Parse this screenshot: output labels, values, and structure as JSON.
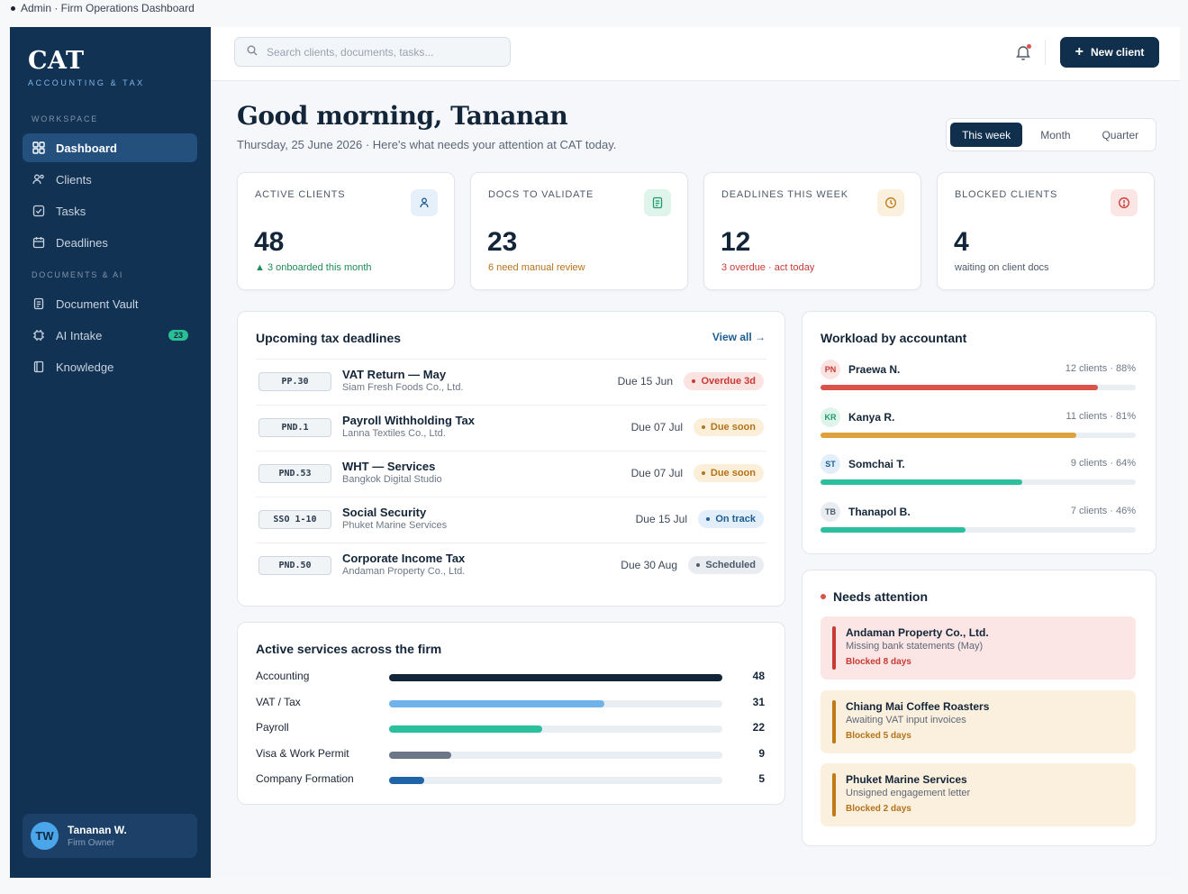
{
  "window_caption": "Admin · Firm Operations Dashboard",
  "brand": {
    "name": "CAT",
    "tagline": "ACCOUNTING & TAX"
  },
  "sidebar": {
    "sections": [
      {
        "label": "WORKSPACE"
      },
      {
        "label": "DOCUMENTS & AI"
      }
    ],
    "items": [
      {
        "label": "Dashboard",
        "icon": "grid-icon",
        "active": true
      },
      {
        "label": "Clients",
        "icon": "users-icon"
      },
      {
        "label": "Tasks",
        "icon": "checkbox-icon"
      },
      {
        "label": "Deadlines",
        "icon": "calendar-icon"
      },
      {
        "label": "Document Vault",
        "icon": "document-icon"
      },
      {
        "label": "AI Intake",
        "icon": "chip-icon",
        "badge": "23"
      },
      {
        "label": "Knowledge",
        "icon": "book-icon"
      }
    ],
    "user": {
      "initials": "TW",
      "name": "Tananan W.",
      "role": "Firm Owner"
    }
  },
  "topbar": {
    "search_placeholder": "Search clients, documents, tasks...",
    "new_client_label": "New client"
  },
  "header": {
    "greeting": "Good morning, Tananan",
    "subtitle": "Thursday, 25 June 2026 · Here's what needs your attention at CAT today.",
    "range_tabs": [
      "This week",
      "Month",
      "Quarter"
    ],
    "active_range": "This week"
  },
  "kpis": [
    {
      "label": "ACTIVE CLIENTS",
      "value": "48",
      "note": "3 onboarded this month",
      "note_color": "#1f8a5c",
      "icon": "user-icon",
      "icon_bg": "#e5f0fb",
      "icon_color": "#1d5d92"
    },
    {
      "label": "DOCS TO VALIDATE",
      "value": "23",
      "note": "6 need manual review",
      "note_color": "#b5731a",
      "icon": "document-icon",
      "icon_bg": "#dff5ec",
      "icon_color": "#1f9a6e"
    },
    {
      "label": "DEADLINES THIS WEEK",
      "value": "12",
      "note": "3 overdue · act today",
      "note_color": "#c83a33",
      "icon": "clock-icon",
      "icon_bg": "#fbf0dd",
      "icon_color": "#c07a18"
    },
    {
      "label": "BLOCKED CLIENTS",
      "value": "4",
      "note": "waiting on client docs",
      "note_color": "#4e5a69",
      "icon": "alert-icon",
      "icon_bg": "#fbe6e5",
      "icon_color": "#c83a33"
    }
  ],
  "deadlines": {
    "title": "Upcoming tax deadlines",
    "view_all": "View all →",
    "rows": [
      {
        "code": "PP.30",
        "name": "VAT Return — May",
        "client": "Siam Fresh Foods Co., Ltd.",
        "due": "Due 15 Jun",
        "status": "Overdue 3d",
        "status_bg": "#fbe3e2",
        "status_color": "#c83a33"
      },
      {
        "code": "PND.1",
        "name": "Payroll Withholding Tax",
        "client": "Lanna Textiles Co., Ltd.",
        "due": "Due 07 Jul",
        "status": "Due soon",
        "status_bg": "#fbefd9",
        "status_color": "#b5731a"
      },
      {
        "code": "PND.53",
        "name": "WHT — Services",
        "client": "Bangkok Digital Studio",
        "due": "Due 07 Jul",
        "status": "Due soon",
        "status_bg": "#fbefd9",
        "status_color": "#b5731a"
      },
      {
        "code": "SSO 1-10",
        "name": "Social Security",
        "client": "Phuket Marine Services",
        "due": "Due 15 Jul",
        "status": "On track",
        "status_bg": "#e2eefa",
        "status_color": "#1d5d92"
      },
      {
        "code": "PND.50",
        "name": "Corporate Income Tax",
        "client": "Andaman Property Co., Ltd.",
        "due": "Due 30 Aug",
        "status": "Scheduled",
        "status_bg": "#e9ecf0",
        "status_color": "#4e5a69"
      }
    ]
  },
  "services": {
    "title": "Active services across the firm",
    "max": 48,
    "rows": [
      {
        "label": "Accounting",
        "value": 48,
        "color": "#132538"
      },
      {
        "label": "VAT / Tax",
        "value": 31,
        "color": "#6fb3ea"
      },
      {
        "label": "Payroll",
        "value": 22,
        "color": "#2bbf9e"
      },
      {
        "label": "Visa & Work Permit",
        "value": 9,
        "color": "#6b7787"
      },
      {
        "label": "Company Formation",
        "value": 5,
        "color": "#1f64a6"
      }
    ]
  },
  "workload": {
    "title": "Workload by accountant",
    "rows": [
      {
        "initials": "PN",
        "name": "Praewa N.",
        "meta": "12 clients · 88%",
        "pct": 88,
        "color": "#d9534a",
        "badge_bg": "#fbe3e2",
        "badge_color": "#c83a33"
      },
      {
        "initials": "KR",
        "name": "Kanya R.",
        "meta": "11 clients · 81%",
        "pct": 81,
        "color": "#dda23c",
        "badge_bg": "#dff5ec",
        "badge_color": "#1f9a6e"
      },
      {
        "initials": "ST",
        "name": "Somchai T.",
        "meta": "9 clients · 64%",
        "pct": 64,
        "color": "#2bbf9e",
        "badge_bg": "#e2eefa",
        "badge_color": "#1d5d92"
      },
      {
        "initials": "TB",
        "name": "Thanapol B.",
        "meta": "7 clients · 46%",
        "pct": 46,
        "color": "#2bbf9e",
        "badge_bg": "#e9ecf0",
        "badge_color": "#4e5a69"
      }
    ]
  },
  "attention": {
    "title": "Needs attention",
    "items": [
      {
        "name": "Andaman Property Co., Ltd.",
        "reason": "Missing bank statements (May)",
        "status": "Blocked 8 days",
        "bg": "#fbe6e5",
        "bar": "#c83a33",
        "status_color": "#c83a33"
      },
      {
        "name": "Chiang Mai Coffee Roasters",
        "reason": "Awaiting VAT input invoices",
        "status": "Blocked 5 days",
        "bg": "#fbf0dd",
        "bar": "#c07a18",
        "status_color": "#b5731a"
      },
      {
        "name": "Phuket Marine Services",
        "reason": "Unsigned engagement letter",
        "status": "Blocked 2 days",
        "bg": "#fbf0dd",
        "bar": "#c07a18",
        "status_color": "#b5731a"
      }
    ]
  }
}
